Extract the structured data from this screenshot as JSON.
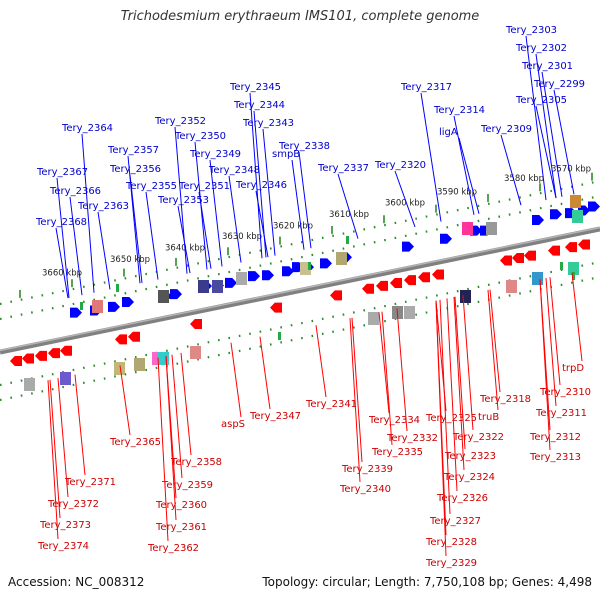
{
  "title": "Trichodesmium erythraeum IMS101, complete genome",
  "footer": {
    "accession": "Accession: NC_008312",
    "topology": "Topology: circular; Length: 7,750,108 bp; Genes: 4,498"
  },
  "colors": {
    "forward": "#0000ff",
    "reverse": "#ff0000",
    "label_forward": "#0000cc",
    "label_reverse": "#cc0000",
    "backbone": "#808080",
    "ticks": "#2e8b2e"
  },
  "scale_labels": [
    "3570 kbp",
    "3580 kbp",
    "3590 kbp",
    "3600 kbp",
    "3610 kbp",
    "3620 kbp",
    "3630 kbp",
    "3640 kbp",
    "3650 kbp",
    "3660 kbp"
  ],
  "forward_genes": [
    "Tery_2303",
    "Tery_2302",
    "Tery_2301",
    "Tery_2299",
    "Tery_2305",
    "Tery_2317",
    "Tery_2314",
    "ligA",
    "Tery_2309",
    "Tery_2320",
    "Tery_2345",
    "Tery_2344",
    "Tery_2343",
    "Tery_2352",
    "Tery_2350",
    "Tery_2349",
    "Tery_2348",
    "smpB",
    "Tery_2338",
    "Tery_2337",
    "Tery_2364",
    "Tery_2357",
    "Tery_2356",
    "Tery_2355",
    "Tery_2351",
    "Tery_2353",
    "Tery_2346",
    "Tery_2367",
    "Tery_2366",
    "Tery_2363",
    "Tery_2368"
  ],
  "reverse_genes": [
    "trpD",
    "Tery_2310",
    "Tery_2311",
    "Tery_2312",
    "Tery_2313",
    "Tery_2318",
    "truB",
    "Tery_2325",
    "Tery_2322",
    "Tery_2334",
    "Tery_2332",
    "Tery_2335",
    "Tery_2323",
    "Tery_2324",
    "Tery_2326",
    "Tery_2327",
    "Tery_2328",
    "Tery_2329",
    "Tery_2341",
    "Tery_2339",
    "Tery_2340",
    "Tery_2347",
    "aspS",
    "Tery_2365",
    "Tery_2358",
    "Tery_2359",
    "Tery_2360",
    "Tery_2361",
    "Tery_2362",
    "Tery_2371",
    "Tery_2372",
    "Tery_2373",
    "Tery_2374"
  ]
}
